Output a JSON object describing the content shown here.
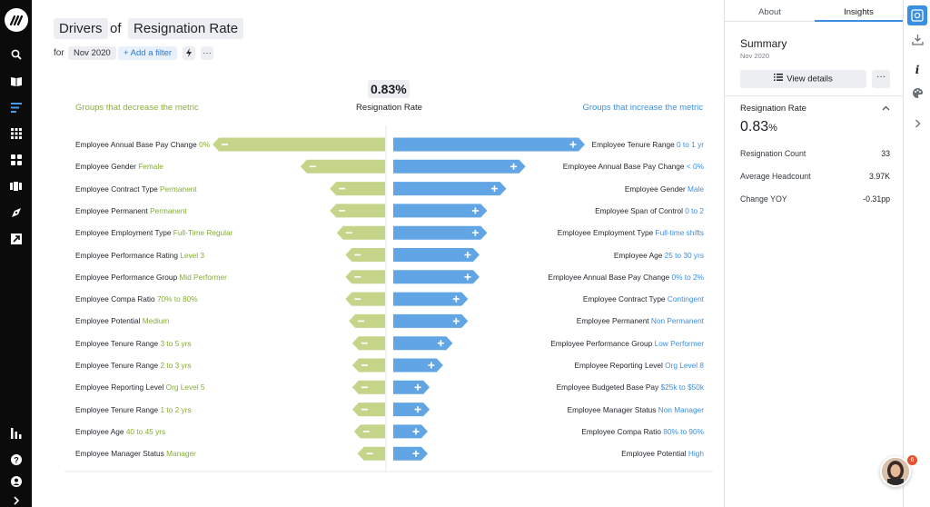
{
  "header": {
    "drivers_label": "Drivers",
    "of_label": "of",
    "metric_label": "Resignation Rate",
    "for_label": "for",
    "period": "Nov 2020",
    "add_filter": "+ Add a filter",
    "quick_icon": "lightning-icon",
    "more_label": "···"
  },
  "center": {
    "value": "0.83%",
    "label": "Resignation Rate",
    "left_heading": "Groups that decrease the metric",
    "right_heading": "Groups that increase the metric"
  },
  "colors": {
    "decrease": "#c4d58a",
    "increase": "#62a5e4",
    "decrease_text": "#83ad34",
    "increase_text": "#3b8fe0"
  },
  "chart_data": {
    "type": "bar",
    "left_series": {
      "name": "Groups that decrease the metric",
      "items": [
        {
          "dim": "Employee Annual Base Pay Change",
          "val": "0%",
          "mag": 1.0
        },
        {
          "dim": "Employee Gender",
          "val": "Female",
          "mag": 0.49
        },
        {
          "dim": "Employee Contract Type",
          "val": "Permanent",
          "mag": 0.32
        },
        {
          "dim": "Employee Permanent",
          "val": "Permanent",
          "mag": 0.32
        },
        {
          "dim": "Employee Employment Type",
          "val": "Full-Time Regular",
          "mag": 0.28
        },
        {
          "dim": "Employee Performance Rating",
          "val": "Level 3",
          "mag": 0.23
        },
        {
          "dim": "Employee Performance Group",
          "val": "Mid Performer",
          "mag": 0.23
        },
        {
          "dim": "Employee Compa Ratio",
          "val": "70% to 80%",
          "mag": 0.23
        },
        {
          "dim": "Employee Potential",
          "val": "Medium",
          "mag": 0.21
        },
        {
          "dim": "Employee Tenure Range",
          "val": "3 to 5 yrs",
          "mag": 0.19
        },
        {
          "dim": "Employee Tenure Range",
          "val": "2 to 3 yrs",
          "mag": 0.19
        },
        {
          "dim": "Employee Reporting Level",
          "val": "Org Level 5",
          "mag": 0.19
        },
        {
          "dim": "Employee Tenure Range",
          "val": "1 to 2 yrs",
          "mag": 0.19
        },
        {
          "dim": "Employee Age",
          "val": "40 to 45 yrs",
          "mag": 0.18
        },
        {
          "dim": "Employee Manager Status",
          "val": "Manager",
          "mag": 0.16
        }
      ]
    },
    "right_series": {
      "name": "Groups that increase the metric",
      "items": [
        {
          "dim": "Employee Tenure Range",
          "val": "0 to 1 yr",
          "mag": 1.0
        },
        {
          "dim": "Employee Annual Base Pay Change",
          "val": "< 0%",
          "mag": 0.69
        },
        {
          "dim": "Employee Gender",
          "val": "Male",
          "mag": 0.59
        },
        {
          "dim": "Employee Span of Control",
          "val": "0 to 2",
          "mag": 0.49
        },
        {
          "dim": "Employee Employment Type",
          "val": "Full-time shifts",
          "mag": 0.49
        },
        {
          "dim": "Employee Age",
          "val": "25 to 30 yrs",
          "mag": 0.45
        },
        {
          "dim": "Employee Annual Base Pay Change",
          "val": "0% to 2%",
          "mag": 0.45
        },
        {
          "dim": "Employee Contract Type",
          "val": "Contingent",
          "mag": 0.39
        },
        {
          "dim": "Employee Permanent",
          "val": "Non Permanent",
          "mag": 0.39
        },
        {
          "dim": "Employee Performance Group",
          "val": "Low Performer",
          "mag": 0.31
        },
        {
          "dim": "Employee Reporting Level",
          "val": "Org Level 8",
          "mag": 0.26
        },
        {
          "dim": "Employee Budgeted Base Pay",
          "val": "$25k to $50k",
          "mag": 0.19
        },
        {
          "dim": "Employee Manager Status",
          "val": "Non Manager",
          "mag": 0.19
        },
        {
          "dim": "Employee Compa Ratio",
          "val": "80% to 90%",
          "mag": 0.18
        },
        {
          "dim": "Employee Potential",
          "val": "High",
          "mag": 0.18
        }
      ]
    }
  },
  "panel": {
    "tabs": [
      "About",
      "Insights"
    ],
    "summary_title": "Summary",
    "summary_sub": "Nov 2020",
    "view_details": "View details",
    "more_label": "···",
    "metric_title": "Resignation Rate",
    "metric_value": "0.83",
    "metric_unit": "%",
    "rows": [
      {
        "label": "Resignation Count",
        "value": "33"
      },
      {
        "label": "Average Headcount",
        "value": "3.97K"
      },
      {
        "label": "Change YOY",
        "value": "-0.31pp"
      }
    ]
  },
  "toolbar": {
    "icons": [
      "insights-icon",
      "download-icon",
      "info-icon",
      "palette-icon",
      "chevron-right-icon"
    ],
    "info_glyph": "i"
  },
  "leftnav": {
    "icons": [
      "search-icon",
      "library-icon",
      "drivers-icon",
      "apps-icon",
      "dashboard-icon",
      "stories-icon",
      "compass-icon",
      "export-icon",
      "metrics-icon",
      "help-icon",
      "account-icon",
      "expand-icon"
    ]
  },
  "avatar": {
    "badge": "6"
  }
}
